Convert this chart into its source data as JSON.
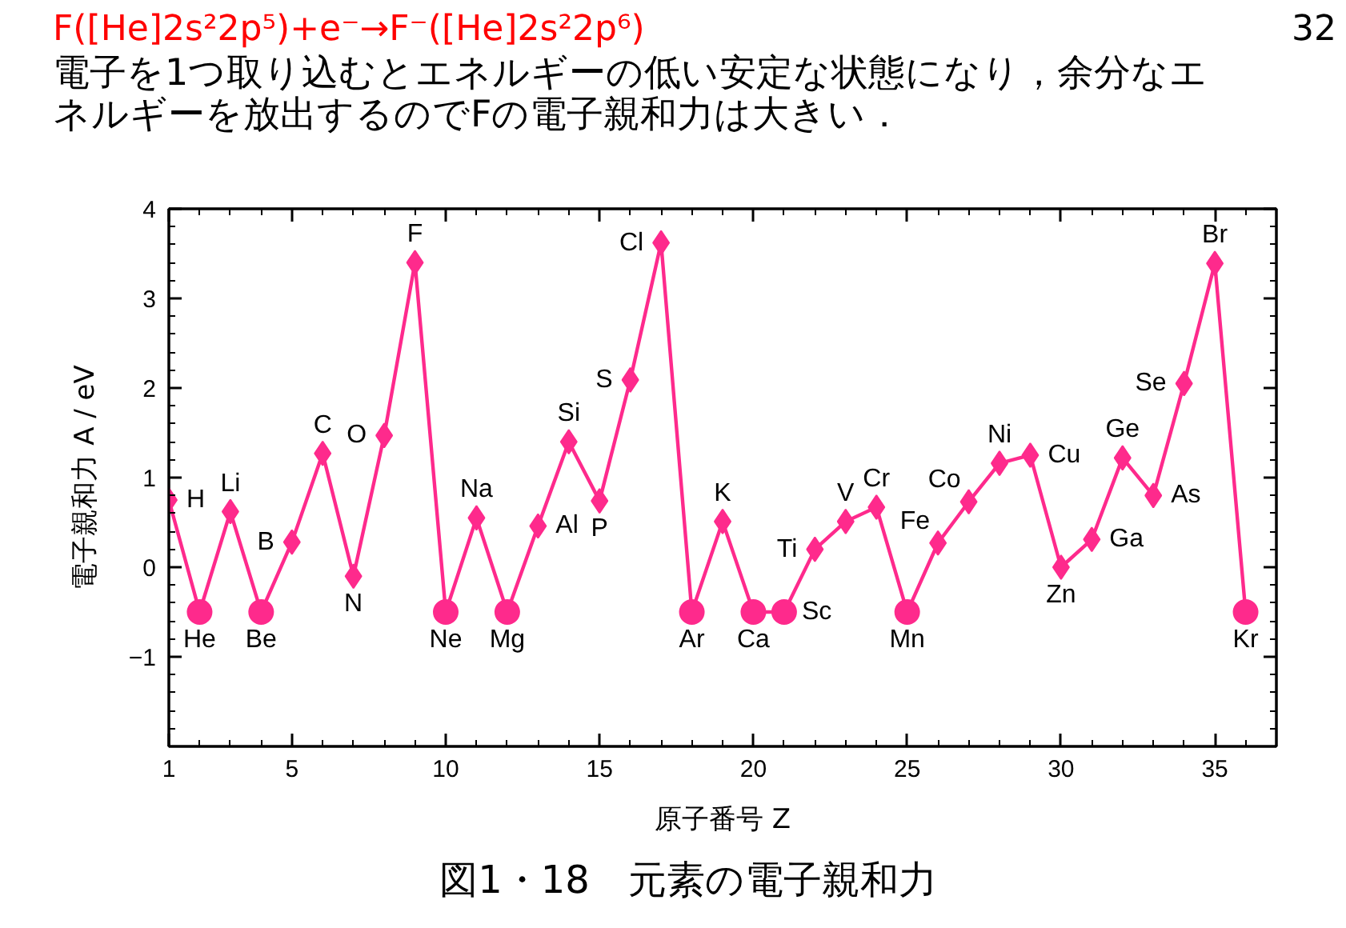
{
  "chart_data": {
    "type": "line",
    "title": "F([He]2s²2p⁵)+e⁻→F⁻([He]2s²2p⁶)",
    "subtitle": "電子を1つ取り込むとエネルギーの低い安定な状態になり，余分なエネルギーを放出するのでFの電子親和力は大きい．",
    "xlabel": "原子番号 Z",
    "ylabel": "電子親和力 A / eV",
    "xlim": [
      1,
      37
    ],
    "xticks": [
      1,
      5,
      10,
      15,
      20,
      25,
      30,
      35
    ],
    "ylim": [
      -2,
      4
    ],
    "yticks": [
      {
        "value": -1,
        "label": "−1"
      },
      0,
      1,
      2,
      3,
      4
    ],
    "series": [
      {
        "color": "#fe2a8c",
        "x": [
          1,
          2,
          3,
          4,
          5,
          6,
          7,
          8,
          9,
          10,
          11,
          12,
          13,
          14,
          15,
          16,
          17,
          18,
          19,
          20,
          21,
          22,
          23,
          24,
          25,
          26,
          27,
          28,
          29,
          30,
          31,
          32,
          33,
          34,
          35,
          36
        ],
        "values": [
          0.75,
          -0.5,
          0.62,
          -0.5,
          0.28,
          1.27,
          -0.1,
          1.47,
          3.4,
          -0.5,
          0.55,
          -0.5,
          0.46,
          1.4,
          0.74,
          2.09,
          3.62,
          -0.5,
          0.51,
          -0.5,
          -0.5,
          0.2,
          0.51,
          0.67,
          -0.5,
          0.27,
          0.73,
          1.16,
          1.25,
          0.0,
          0.31,
          1.22,
          0.8,
          2.05,
          3.39,
          -0.5
        ]
      },
      {
        "type": "scatter",
        "color": "#fe2a8c",
        "marker": "diamond",
        "x": [
          1,
          3,
          5,
          6,
          7,
          8,
          9,
          11,
          13,
          14,
          15,
          16,
          17,
          19,
          22,
          23,
          24,
          26,
          27,
          28,
          29,
          30,
          31,
          32,
          33,
          34,
          35
        ],
        "values": [
          0.75,
          0.62,
          0.28,
          1.27,
          -0.1,
          1.47,
          3.4,
          0.55,
          0.46,
          1.4,
          0.74,
          2.09,
          3.62,
          0.51,
          0.2,
          0.51,
          0.67,
          0.27,
          0.73,
          1.16,
          1.25,
          0.0,
          0.31,
          1.22,
          0.8,
          2.05,
          3.39
        ]
      },
      {
        "type": "scatter",
        "color": "#fe2a8c",
        "marker": "circle",
        "x": [
          2,
          4,
          10,
          12,
          18,
          20,
          21,
          25,
          36
        ],
        "values": [
          -0.5,
          -0.5,
          -0.5,
          -0.5,
          -0.5,
          -0.5,
          -0.5,
          -0.5,
          -0.5
        ]
      }
    ],
    "annotations": [
      "32",
      "図1・18　元素の電子親和力",
      {
        "text": "H",
        "x": 1,
        "y": 0.75
      },
      {
        "text": "He",
        "x": 2,
        "y": -0.5
      },
      {
        "text": "Li",
        "x": 3,
        "y": 0.62
      },
      {
        "text": "Be",
        "x": 4,
        "y": -0.5
      },
      {
        "text": "B",
        "x": 5,
        "y": 0.28
      },
      {
        "text": "C",
        "x": 6,
        "y": 1.27
      },
      {
        "text": "N",
        "x": 7,
        "y": -0.1
      },
      {
        "text": "O",
        "x": 8,
        "y": 1.47
      },
      {
        "text": "F",
        "x": 9,
        "y": 3.4
      },
      {
        "text": "Ne",
        "x": 10,
        "y": -0.5
      },
      {
        "text": "Na",
        "x": 11,
        "y": 0.55
      },
      {
        "text": "Mg",
        "x": 12,
        "y": -0.5
      },
      {
        "text": "Al",
        "x": 13,
        "y": 0.46
      },
      {
        "text": "Si",
        "x": 14,
        "y": 1.4
      },
      {
        "text": "P",
        "x": 15,
        "y": 0.74
      },
      {
        "text": "S",
        "x": 16,
        "y": 2.09
      },
      {
        "text": "Cl",
        "x": 17,
        "y": 3.62
      },
      {
        "text": "Ar",
        "x": 18,
        "y": -0.5
      },
      {
        "text": "K",
        "x": 19,
        "y": 0.51
      },
      {
        "text": "Ca",
        "x": 20,
        "y": -0.5
      },
      {
        "text": "Sc",
        "x": 21,
        "y": -0.5
      },
      {
        "text": "Ti",
        "x": 22,
        "y": 0.2
      },
      {
        "text": "V",
        "x": 23,
        "y": 0.51
      },
      {
        "text": "Cr",
        "x": 24,
        "y": 0.67
      },
      {
        "text": "Mn",
        "x": 25,
        "y": -0.5
      },
      {
        "text": "Fe",
        "x": 26,
        "y": 0.27
      },
      {
        "text": "Co",
        "x": 27,
        "y": 0.73
      },
      {
        "text": "Ni",
        "x": 28,
        "y": 1.16
      },
      {
        "text": "Cu",
        "x": 29,
        "y": 1.25
      },
      {
        "text": "Zn",
        "x": 30,
        "y": 0.0
      },
      {
        "text": "Ga",
        "x": 31,
        "y": 0.31
      },
      {
        "text": "Ge",
        "x": 32,
        "y": 1.22
      },
      {
        "text": "As",
        "x": 33,
        "y": 0.8
      },
      {
        "text": "Se",
        "x": 34,
        "y": 2.05
      },
      {
        "text": "Br",
        "x": 35,
        "y": 3.39
      },
      {
        "text": "Kr",
        "x": 36,
        "y": -0.5
      }
    ]
  }
}
